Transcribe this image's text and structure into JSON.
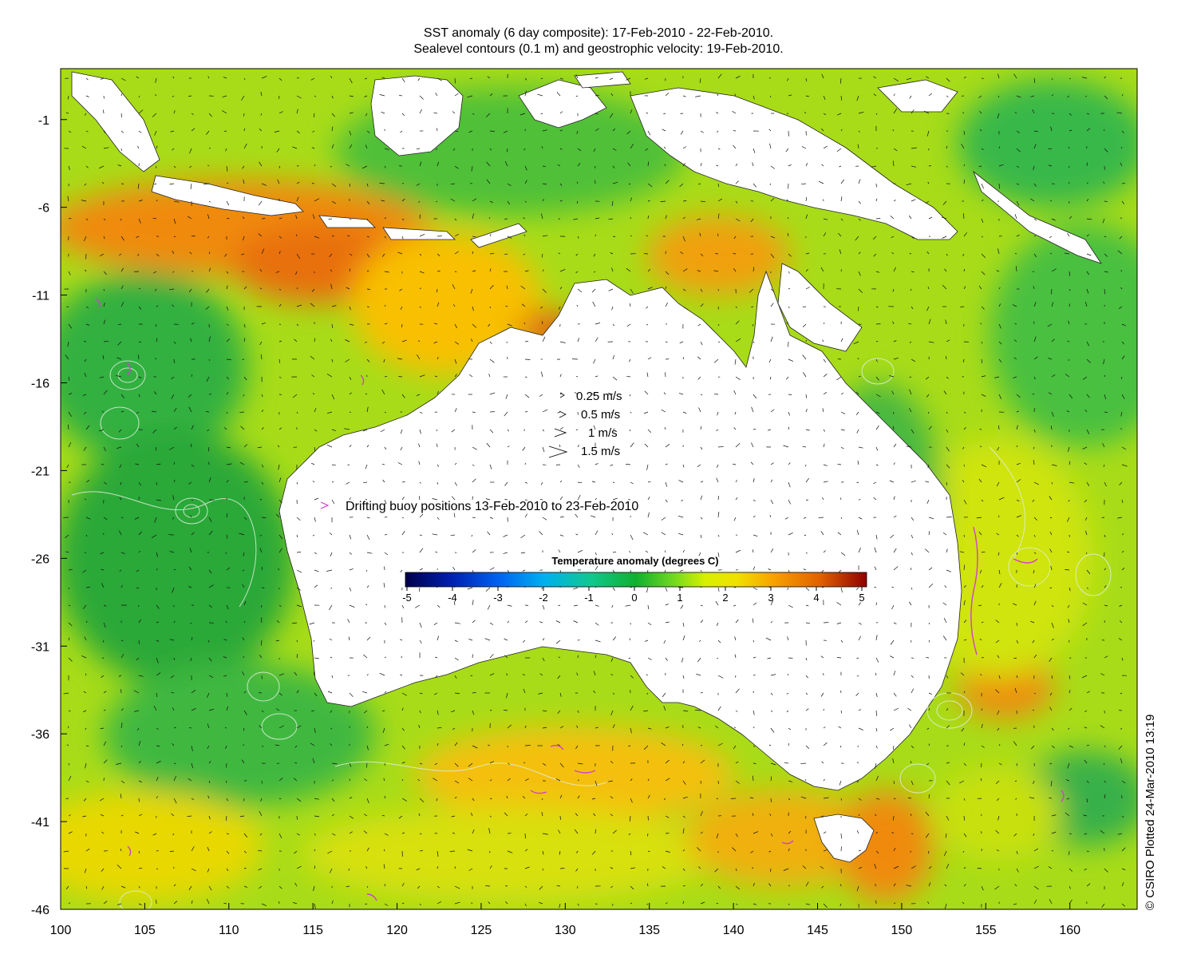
{
  "title_line1": "SST anomaly (6 day composite): 17-Feb-2010 - 22-Feb-2010.",
  "title_line2": "Sealevel contours (0.1 m) and geostrophic velocity: 19-Feb-2010.",
  "credit": "© CSIRO Plotted 24-Mar-2010 13:19",
  "x_ticks": [
    "100",
    "105",
    "110",
    "115",
    "120",
    "125",
    "130",
    "135",
    "140",
    "145",
    "150",
    "155",
    "160"
  ],
  "y_ticks": [
    "-1",
    "-6",
    "-11",
    "-16",
    "-21",
    "-26",
    "-31",
    "-36",
    "-41",
    "-46"
  ],
  "velocity_legend": [
    "0.25 m/s",
    "0.5 m/s",
    "1 m/s",
    "1.5 m/s"
  ],
  "buoy_legend": "Drifting buoy positions 13-Feb-2010 to 23-Feb-2010",
  "colorbar": {
    "title": "Temperature anomaly (degrees C)",
    "ticks": [
      "-5",
      "-4",
      "-3",
      "-2",
      "-1",
      "0",
      "1",
      "2",
      "3",
      "4",
      "5"
    ],
    "range": [
      -5,
      5
    ]
  },
  "colors": {
    "land": "#ffffff",
    "buoy": "#d040d0",
    "contour": "#d8e8d8",
    "arrow": "#111111"
  }
}
